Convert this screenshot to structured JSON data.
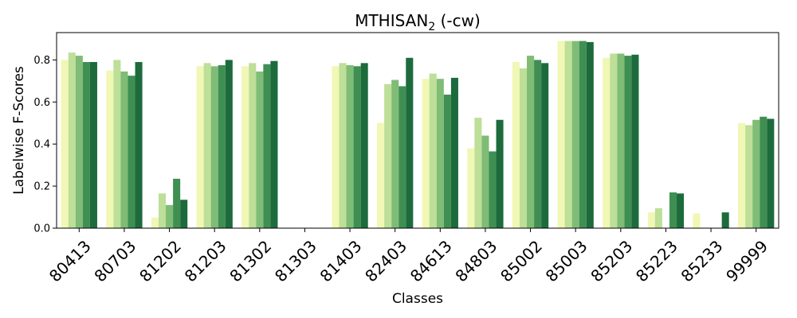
{
  "chart_data": {
    "type": "bar",
    "title": "MTHISAN",
    "title_subscript": "2",
    "title_suffix": " (-cw)",
    "xlabel": "Classes",
    "ylabel": "Labelwise F-Scores",
    "ylim": [
      0,
      0.93
    ],
    "yticks": [
      "0.0",
      "0.2",
      "0.4",
      "0.6",
      "0.8"
    ],
    "categories": [
      "80413",
      "80703",
      "81202",
      "81203",
      "81302",
      "81303",
      "81403",
      "82403",
      "84613",
      "84803",
      "85002",
      "85003",
      "85203",
      "85223",
      "85233",
      "99999"
    ],
    "series": [
      {
        "color": "#f1f7b4",
        "values": [
          0.8,
          0.75,
          0.05,
          0.77,
          0.77,
          0.0,
          0.77,
          0.5,
          0.71,
          0.38,
          0.79,
          0.89,
          0.81,
          0.075,
          0.07,
          0.5
        ]
      },
      {
        "color": "#bddf98",
        "values": [
          0.835,
          0.8,
          0.165,
          0.785,
          0.785,
          0.0,
          0.785,
          0.685,
          0.735,
          0.525,
          0.76,
          0.89,
          0.83,
          0.095,
          0.0,
          0.49
        ]
      },
      {
        "color": "#7fbc75",
        "values": [
          0.82,
          0.745,
          0.11,
          0.77,
          0.745,
          0.0,
          0.775,
          0.705,
          0.71,
          0.44,
          0.82,
          0.89,
          0.83,
          0.0,
          0.0,
          0.515
        ]
      },
      {
        "color": "#3f8f53",
        "values": [
          0.79,
          0.725,
          0.235,
          0.775,
          0.78,
          0.0,
          0.77,
          0.675,
          0.635,
          0.365,
          0.8,
          0.89,
          0.82,
          0.17,
          0.0,
          0.53
        ]
      },
      {
        "color": "#1d6b3c",
        "values": [
          0.79,
          0.79,
          0.135,
          0.8,
          0.795,
          0.0,
          0.785,
          0.81,
          0.715,
          0.515,
          0.785,
          0.885,
          0.825,
          0.165,
          0.075,
          0.52
        ]
      }
    ]
  }
}
